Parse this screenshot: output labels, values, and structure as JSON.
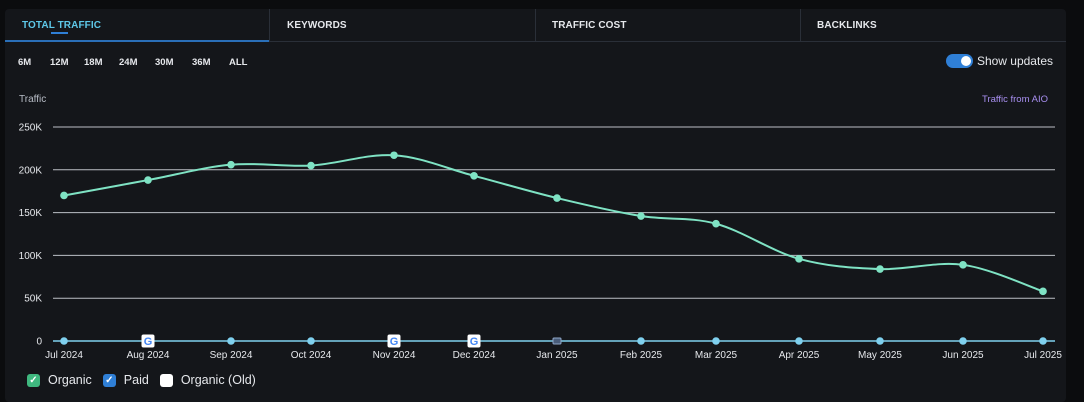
{
  "tabs": [
    {
      "label": "TOTAL TRAFFIC",
      "active": true
    },
    {
      "label": "KEYWORDS",
      "active": false
    },
    {
      "label": "TRAFFIC COST",
      "active": false
    },
    {
      "label": "BACKLINKS",
      "active": false
    }
  ],
  "ranges": {
    "options": [
      "6M",
      "12M",
      "18M",
      "24M",
      "30M",
      "36M",
      "ALL"
    ],
    "selected": "12M"
  },
  "toggle": {
    "label": "Show updates",
    "on": true
  },
  "aio_label": "Traffic from AIO",
  "legend": [
    {
      "label": "Organic",
      "color": "#3fb87f",
      "checked": true
    },
    {
      "label": "Paid",
      "color": "#2f7fd6",
      "checked": true
    },
    {
      "label": "Organic (Old)",
      "color": "#ffffff",
      "checked": false
    }
  ],
  "colors": {
    "organic_line": "#7fe3c4",
    "paid_line": "#7fd0ee",
    "grid": "#d9dde3",
    "google_icon": "google-g-icon"
  },
  "chart_data": {
    "type": "line",
    "ylabel": "Traffic",
    "ylim": [
      0,
      250000
    ],
    "y_ticks": [
      "0",
      "50K",
      "100K",
      "150K",
      "200K",
      "250K"
    ],
    "y_tick_values": [
      0,
      50000,
      100000,
      150000,
      200000,
      250000
    ],
    "x": [
      "Jul 2024",
      "Aug 2024",
      "Sep 2024",
      "Oct 2024",
      "Nov 2024",
      "Dec 2024",
      "Jan 2025",
      "Feb 2025",
      "Mar 2025",
      "Apr 2025",
      "May 2025",
      "Jun 2025",
      "Jul 2025"
    ],
    "series": [
      {
        "name": "Organic",
        "values": [
          170000,
          188000,
          206000,
          205000,
          217000,
          193000,
          167000,
          146000,
          137000,
          96000,
          84000,
          89000,
          58000
        ]
      },
      {
        "name": "Paid",
        "values": [
          0,
          0,
          0,
          0,
          0,
          0,
          0,
          0,
          0,
          0,
          0,
          0,
          0
        ]
      }
    ],
    "google_updates": [
      "Aug 2024",
      "Nov 2024",
      "Dec 2024"
    ],
    "grid": true,
    "legend_position": "bottom-left"
  }
}
